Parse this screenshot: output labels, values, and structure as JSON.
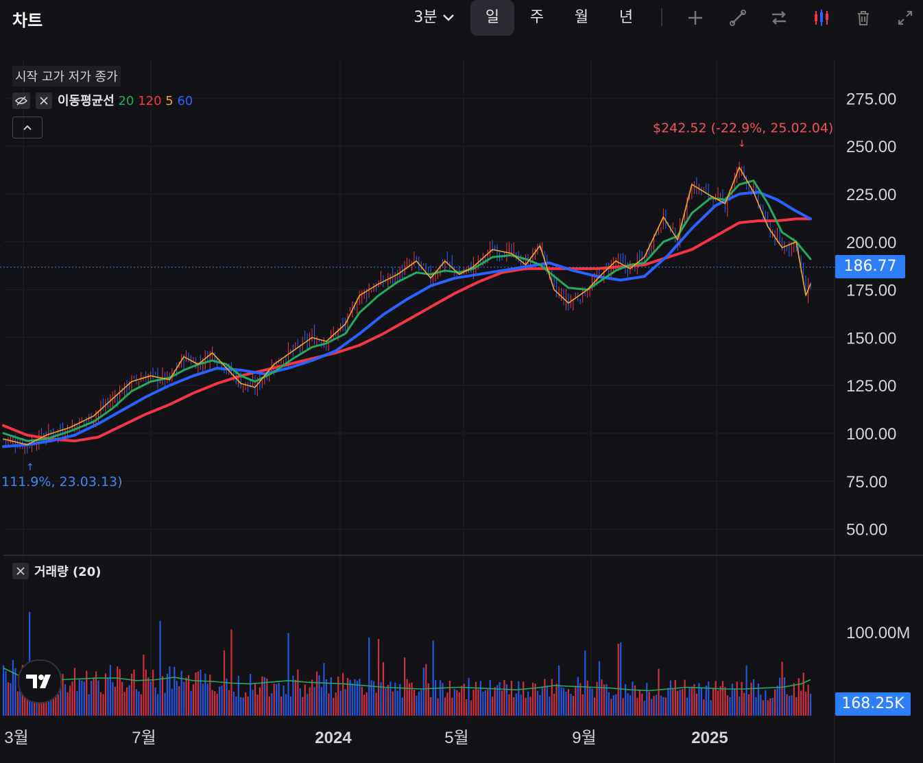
{
  "topbar": {
    "title": "차트",
    "interval": "3분",
    "periods": [
      "일",
      "주",
      "월",
      "년"
    ],
    "active_period": "일",
    "tools": [
      "plus-icon",
      "line-tool-icon",
      "swap-icon",
      "candles-icon",
      "trash-icon",
      "expand-icon"
    ]
  },
  "legend": {
    "ohlc_label": "시작 고가 저가 종가",
    "ma_label": "이동평균선",
    "ma_periods": [
      {
        "value": "20",
        "color": "#22ab5e"
      },
      {
        "value": "120",
        "color": "#f23645"
      },
      {
        "value": "5",
        "color": "#f5a623"
      },
      {
        "value": "60",
        "color": "#2962ff"
      }
    ],
    "volume_label": "거래량 (20)"
  },
  "annotations": {
    "high": "$242.52 (-22.9%, 25.02.04)",
    "low": "111.9%, 23.03.13)"
  },
  "price_tags": {
    "last_price": "186.77",
    "last_volume": "168.25K"
  },
  "chart_data": {
    "type": "line",
    "title": "",
    "x_ticks": [
      "3월",
      "7월",
      "2024",
      "5월",
      "9월",
      "2025"
    ],
    "y_ticks": [
      "275.00",
      "250.00",
      "225.00",
      "200.00",
      "175.00",
      "150.00",
      "125.00",
      "100.00",
      "75.00",
      "50.00"
    ],
    "ylim": [
      35,
      290
    ],
    "volume_ticks": [
      "100.00M"
    ],
    "volume_ylim": [
      0,
      150
    ],
    "last_price": 186.77,
    "high": 242.52,
    "low": 90,
    "series": [
      {
        "name": "5",
        "color": "#f5a623",
        "values": [
          [
            0,
            97
          ],
          [
            10,
            94
          ],
          [
            18,
            99
          ],
          [
            28,
            103
          ],
          [
            38,
            109
          ],
          [
            46,
            118
          ],
          [
            54,
            127
          ],
          [
            62,
            130
          ],
          [
            70,
            128
          ],
          [
            76,
            140
          ],
          [
            82,
            136
          ],
          [
            88,
            142
          ],
          [
            94,
            134
          ],
          [
            100,
            126
          ],
          [
            106,
            124
          ],
          [
            114,
            136
          ],
          [
            122,
            143
          ],
          [
            130,
            150
          ],
          [
            136,
            148
          ],
          [
            144,
            157
          ],
          [
            150,
            172
          ],
          [
            158,
            178
          ],
          [
            166,
            183
          ],
          [
            174,
            190
          ],
          [
            180,
            181
          ],
          [
            186,
            190
          ],
          [
            192,
            183
          ],
          [
            198,
            187
          ],
          [
            206,
            196
          ],
          [
            214,
            194
          ],
          [
            220,
            188
          ],
          [
            226,
            198
          ],
          [
            232,
            175
          ],
          [
            238,
            168
          ],
          [
            246,
            175
          ],
          [
            252,
            183
          ],
          [
            258,
            190
          ],
          [
            264,
            186
          ],
          [
            270,
            192
          ],
          [
            278,
            213
          ],
          [
            284,
            201
          ],
          [
            290,
            230
          ],
          [
            298,
            224
          ],
          [
            304,
            220
          ],
          [
            310,
            239
          ],
          [
            316,
            226
          ],
          [
            322,
            208
          ],
          [
            328,
            197
          ],
          [
            334,
            200
          ],
          [
            338,
            172
          ],
          [
            340,
            178
          ]
        ]
      },
      {
        "name": "20",
        "color": "#22ab5e",
        "values": [
          [
            0,
            100
          ],
          [
            10,
            96
          ],
          [
            18,
            97
          ],
          [
            28,
            101
          ],
          [
            38,
            106
          ],
          [
            46,
            113
          ],
          [
            54,
            122
          ],
          [
            62,
            127
          ],
          [
            70,
            129
          ],
          [
            76,
            133
          ],
          [
            82,
            136
          ],
          [
            88,
            138
          ],
          [
            94,
            136
          ],
          [
            100,
            130
          ],
          [
            106,
            127
          ],
          [
            114,
            132
          ],
          [
            122,
            139
          ],
          [
            130,
            145
          ],
          [
            136,
            147
          ],
          [
            144,
            152
          ],
          [
            150,
            163
          ],
          [
            158,
            172
          ],
          [
            166,
            179
          ],
          [
            174,
            184
          ],
          [
            180,
            183
          ],
          [
            186,
            185
          ],
          [
            192,
            184
          ],
          [
            198,
            186
          ],
          [
            206,
            192
          ],
          [
            214,
            193
          ],
          [
            220,
            191
          ],
          [
            226,
            188
          ],
          [
            232,
            182
          ],
          [
            238,
            176
          ],
          [
            246,
            175
          ],
          [
            252,
            180
          ],
          [
            258,
            185
          ],
          [
            264,
            188
          ],
          [
            270,
            189
          ],
          [
            278,
            200
          ],
          [
            284,
            203
          ],
          [
            290,
            215
          ],
          [
            298,
            223
          ],
          [
            304,
            222
          ],
          [
            310,
            230
          ],
          [
            316,
            232
          ],
          [
            322,
            220
          ],
          [
            328,
            205
          ],
          [
            334,
            200
          ],
          [
            340,
            191
          ]
        ]
      },
      {
        "name": "60",
        "color": "#2962ff",
        "values": [
          [
            0,
            93
          ],
          [
            10,
            94
          ],
          [
            20,
            96
          ],
          [
            30,
            99
          ],
          [
            40,
            105
          ],
          [
            50,
            112
          ],
          [
            60,
            119
          ],
          [
            70,
            125
          ],
          [
            80,
            130
          ],
          [
            90,
            134
          ],
          [
            100,
            133
          ],
          [
            110,
            131
          ],
          [
            120,
            134
          ],
          [
            130,
            138
          ],
          [
            140,
            143
          ],
          [
            150,
            152
          ],
          [
            160,
            162
          ],
          [
            170,
            170
          ],
          [
            180,
            177
          ],
          [
            190,
            181
          ],
          [
            200,
            183
          ],
          [
            210,
            185
          ],
          [
            220,
            187
          ],
          [
            230,
            189
          ],
          [
            240,
            185
          ],
          [
            250,
            182
          ],
          [
            260,
            180
          ],
          [
            270,
            182
          ],
          [
            280,
            193
          ],
          [
            290,
            207
          ],
          [
            300,
            219
          ],
          [
            310,
            225
          ],
          [
            318,
            226
          ],
          [
            326,
            222
          ],
          [
            334,
            216
          ],
          [
            340,
            212
          ]
        ]
      },
      {
        "name": "120",
        "color": "#f23645",
        "values": [
          [
            0,
            104
          ],
          [
            10,
            99
          ],
          [
            20,
            97
          ],
          [
            30,
            96
          ],
          [
            40,
            98
          ],
          [
            50,
            104
          ],
          [
            60,
            110
          ],
          [
            70,
            115
          ],
          [
            80,
            121
          ],
          [
            90,
            126
          ],
          [
            100,
            130
          ],
          [
            110,
            133
          ],
          [
            120,
            136
          ],
          [
            130,
            139
          ],
          [
            140,
            142
          ],
          [
            150,
            146
          ],
          [
            160,
            152
          ],
          [
            170,
            159
          ],
          [
            180,
            166
          ],
          [
            190,
            173
          ],
          [
            200,
            179
          ],
          [
            210,
            184
          ],
          [
            220,
            186
          ],
          [
            230,
            186
          ],
          [
            240,
            186
          ],
          [
            250,
            186
          ],
          [
            260,
            187
          ],
          [
            270,
            188
          ],
          [
            280,
            192
          ],
          [
            290,
            196
          ],
          [
            300,
            203
          ],
          [
            310,
            210
          ],
          [
            318,
            211
          ],
          [
            326,
            211
          ],
          [
            334,
            212
          ],
          [
            340,
            212
          ]
        ]
      }
    ],
    "volume_ma": [
      [
        0,
        57
      ],
      [
        8,
        46
      ],
      [
        16,
        43
      ],
      [
        24,
        43
      ],
      [
        32,
        44
      ],
      [
        40,
        45
      ],
      [
        48,
        45
      ],
      [
        56,
        42
      ],
      [
        64,
        43
      ],
      [
        72,
        46
      ],
      [
        80,
        42
      ],
      [
        88,
        41
      ],
      [
        96,
        39
      ],
      [
        104,
        38
      ],
      [
        112,
        40
      ],
      [
        120,
        42
      ],
      [
        128,
        40
      ],
      [
        136,
        39
      ],
      [
        144,
        38
      ],
      [
        152,
        36
      ],
      [
        160,
        34
      ],
      [
        168,
        33
      ],
      [
        176,
        32
      ],
      [
        184,
        33
      ],
      [
        192,
        34
      ],
      [
        200,
        33
      ],
      [
        208,
        32
      ],
      [
        216,
        31
      ],
      [
        224,
        33
      ],
      [
        232,
        36
      ],
      [
        240,
        35
      ],
      [
        248,
        34
      ],
      [
        256,
        33
      ],
      [
        264,
        31
      ],
      [
        272,
        30
      ],
      [
        280,
        32
      ],
      [
        288,
        34
      ],
      [
        296,
        33
      ],
      [
        304,
        32
      ],
      [
        312,
        32
      ],
      [
        320,
        33
      ],
      [
        328,
        34
      ],
      [
        336,
        38
      ],
      [
        340,
        43
      ]
    ]
  }
}
